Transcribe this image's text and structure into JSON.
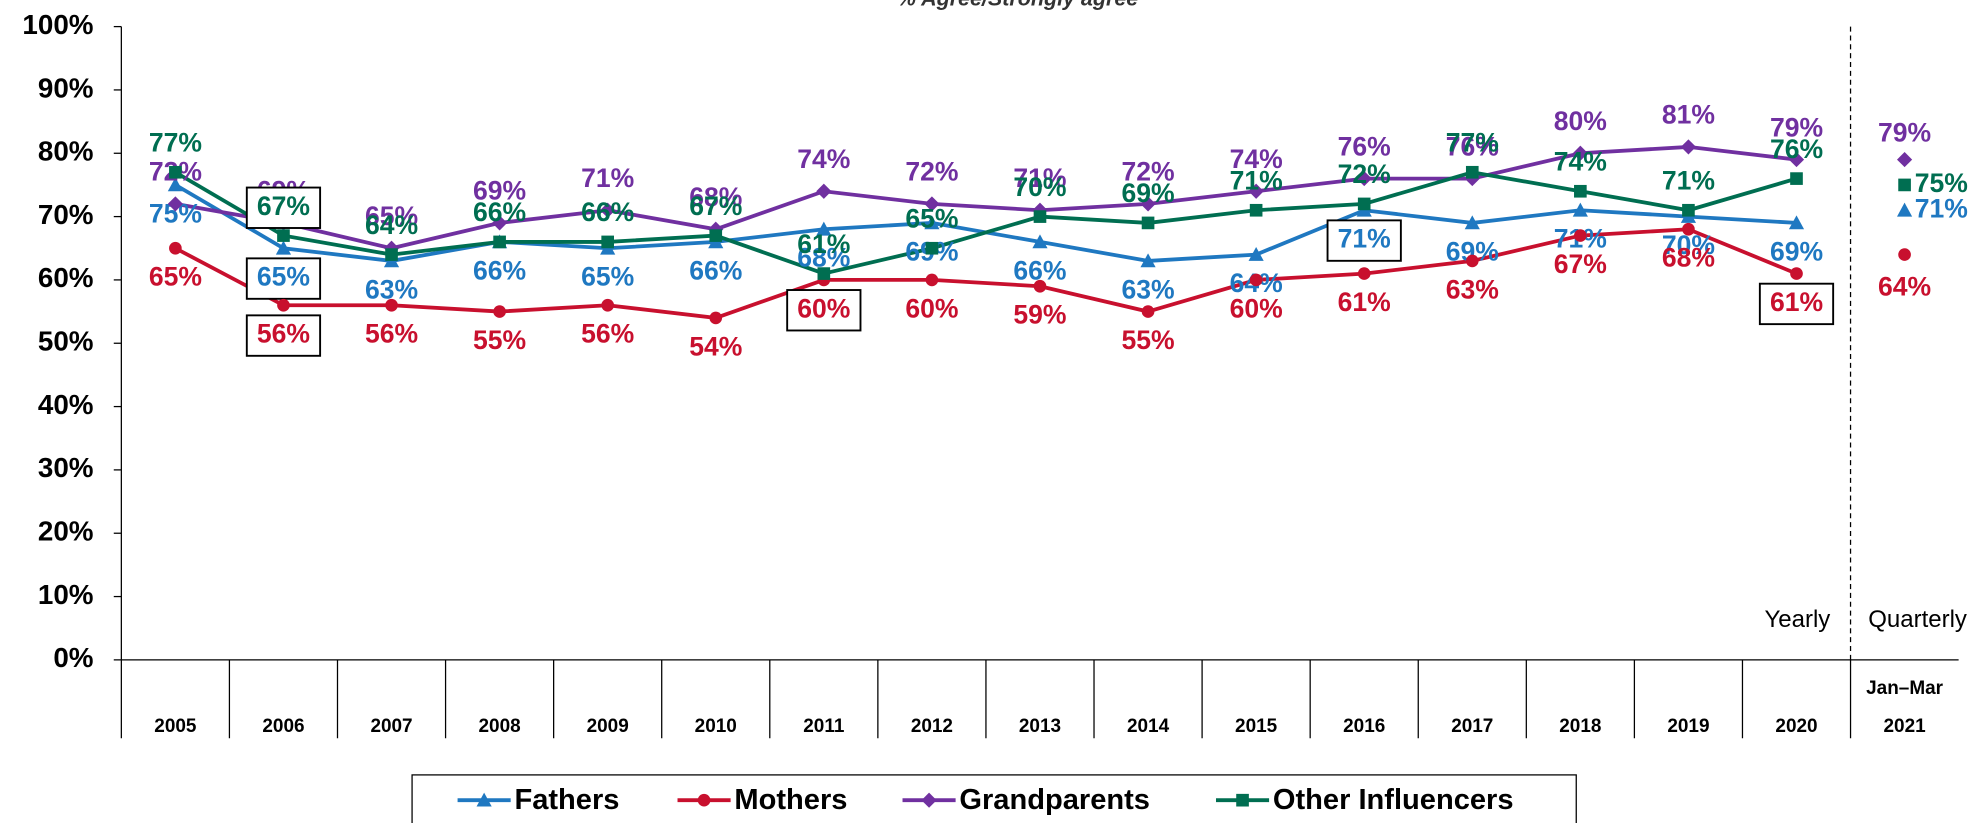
{
  "chart_data": {
    "type": "line",
    "subtitle": "% Agree/Strongly agree",
    "categories": [
      "2005",
      "2006",
      "2007",
      "2008",
      "2009",
      "2010",
      "2011",
      "2012",
      "2013",
      "2014",
      "2015",
      "2016",
      "2017",
      "2018",
      "2019",
      "2020",
      "2021"
    ],
    "quarter_months": "Jan–Mar",
    "period_labels": [
      "Yearly",
      "Quarterly"
    ],
    "divider_index": 16,
    "ylim": [
      0,
      100
    ],
    "yticks": [
      {
        "value": 0,
        "label": "0%"
      },
      {
        "value": 10,
        "label": "10%"
      },
      {
        "value": 20,
        "label": "20%"
      },
      {
        "value": 30,
        "label": "30%"
      },
      {
        "value": 40,
        "label": "40%"
      },
      {
        "value": 50,
        "label": "50%"
      },
      {
        "value": 60,
        "label": "60%"
      },
      {
        "value": 70,
        "label": "70%"
      },
      {
        "value": 80,
        "label": "80%"
      },
      {
        "value": 90,
        "label": "90%"
      },
      {
        "value": 100,
        "label": "100%"
      }
    ],
    "series": [
      {
        "name": "Fathers",
        "color": "#1f78c1",
        "marker": "triangle",
        "values": [
          75,
          65,
          63,
          66,
          65,
          66,
          68,
          69,
          66,
          63,
          64,
          71,
          69,
          71,
          70,
          69,
          71
        ],
        "value_labels": [
          "75%",
          "65%",
          "63%",
          "66%",
          "65%",
          "66%",
          "68%",
          "69%",
          "66%",
          "63%",
          "64%",
          "71%",
          "69%",
          "71%",
          "70%",
          "69%",
          "71%"
        ],
        "boxed": [
          1,
          11
        ]
      },
      {
        "name": "Mothers",
        "color": "#c8102e",
        "marker": "circle",
        "values": [
          65,
          56,
          56,
          55,
          56,
          54,
          60,
          60,
          59,
          55,
          60,
          61,
          63,
          67,
          68,
          61,
          64
        ],
        "value_labels": [
          "65%",
          "56%",
          "56%",
          "55%",
          "56%",
          "54%",
          "60%",
          "60%",
          "59%",
          "55%",
          "60%",
          "61%",
          "63%",
          "67%",
          "68%",
          "61%",
          "64%"
        ],
        "boxed": [
          1,
          6,
          15
        ]
      },
      {
        "name": "Grandparents",
        "color": "#7030a0",
        "marker": "diamond",
        "values": [
          72,
          69,
          65,
          69,
          71,
          68,
          74,
          72,
          71,
          72,
          74,
          76,
          76,
          80,
          81,
          79,
          79
        ],
        "value_labels": [
          "72%",
          "69%",
          "65%",
          "69%",
          "71%",
          "68%",
          "74%",
          "72%",
          "71%",
          "72%",
          "74%",
          "76%",
          "76%",
          "80%",
          "81%",
          "79%",
          "79%"
        ],
        "boxed": []
      },
      {
        "name": "Other Influencers",
        "color": "#006e51",
        "marker": "square",
        "values": [
          77,
          67,
          64,
          66,
          66,
          67,
          61,
          65,
          70,
          69,
          71,
          72,
          77,
          74,
          71,
          76,
          75
        ],
        "value_labels": [
          "77%",
          "67%",
          "64%",
          "66%",
          "66%",
          "67%",
          "61%",
          "65%",
          "70%",
          "69%",
          "71%",
          "72%",
          "77%",
          "74%",
          "71%",
          "76%",
          "75%"
        ],
        "boxed": [
          1
        ]
      }
    ]
  }
}
